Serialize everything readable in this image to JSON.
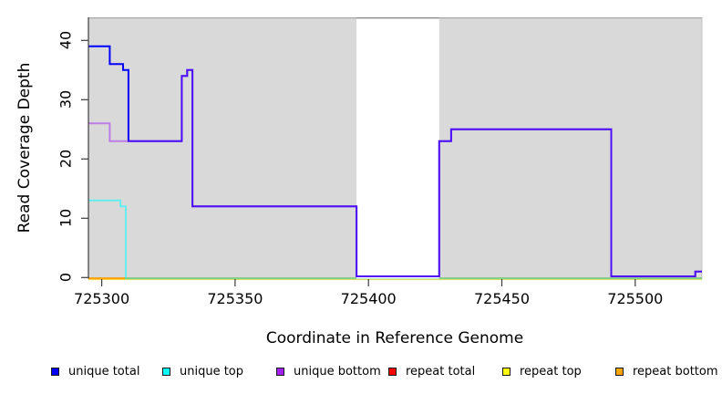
{
  "chart_data": {
    "type": "line",
    "subtype": "step-coverage",
    "title": "",
    "xlabel": "Coordinate in Reference Genome",
    "ylabel": "Read Coverage Depth",
    "xlim": [
      725295,
      725525
    ],
    "ylim": [
      0,
      44
    ],
    "x_ticks": [
      725300,
      725350,
      725400,
      725450,
      725500
    ],
    "y_ticks": [
      0,
      10,
      20,
      30,
      40
    ],
    "plot_bg_color": "#d9d9d9",
    "no_coverage_gap": {
      "x_start": 725395.5,
      "x_end": 725426.5
    },
    "series": [
      {
        "name": "unique total",
        "color": "#0000FF",
        "steps": [
          [
            725295,
            39
          ],
          [
            725303,
            36
          ],
          [
            725308,
            35
          ],
          [
            725310,
            23
          ],
          [
            725330,
            34
          ],
          [
            725332,
            35
          ],
          [
            725334,
            12
          ],
          [
            725395.5,
            0
          ],
          [
            725426.5,
            23
          ],
          [
            725431,
            25
          ],
          [
            725491,
            0
          ],
          [
            725522.5,
            1
          ]
        ]
      },
      {
        "name": "unique top",
        "color": "#00FFFF",
        "steps": [
          [
            725295,
            13
          ],
          [
            725307,
            12
          ],
          [
            725309,
            0
          ]
        ]
      },
      {
        "name": "unique bottom",
        "color": "#A020F0",
        "steps": [
          [
            725295,
            26
          ],
          [
            725303,
            23
          ],
          [
            725330,
            34
          ],
          [
            725332,
            35
          ],
          [
            725334,
            12
          ],
          [
            725395.5,
            0
          ],
          [
            725426.5,
            23
          ],
          [
            725431,
            25
          ],
          [
            725491,
            0
          ],
          [
            725522.5,
            1
          ]
        ]
      },
      {
        "name": "repeat total",
        "color": "#FF0000",
        "steps": [
          [
            725295,
            0
          ]
        ]
      },
      {
        "name": "repeat top",
        "color": "#FFFF00",
        "steps": [
          [
            725295,
            0
          ]
        ]
      },
      {
        "name": "repeat bottom",
        "color": "#FFA500",
        "steps": [
          [
            725295,
            0
          ]
        ]
      }
    ],
    "legend": {
      "position": "bottom",
      "items": [
        {
          "label": "unique total",
          "color": "#0000FF"
        },
        {
          "label": "unique top",
          "color": "#00FFFF"
        },
        {
          "label": "unique bottom",
          "color": "#A020F0"
        },
        {
          "label": "repeat total",
          "color": "#FF0000"
        },
        {
          "label": "repeat top",
          "color": "#FFFF00"
        },
        {
          "label": "repeat bottom",
          "color": "#FFA500"
        }
      ]
    }
  }
}
